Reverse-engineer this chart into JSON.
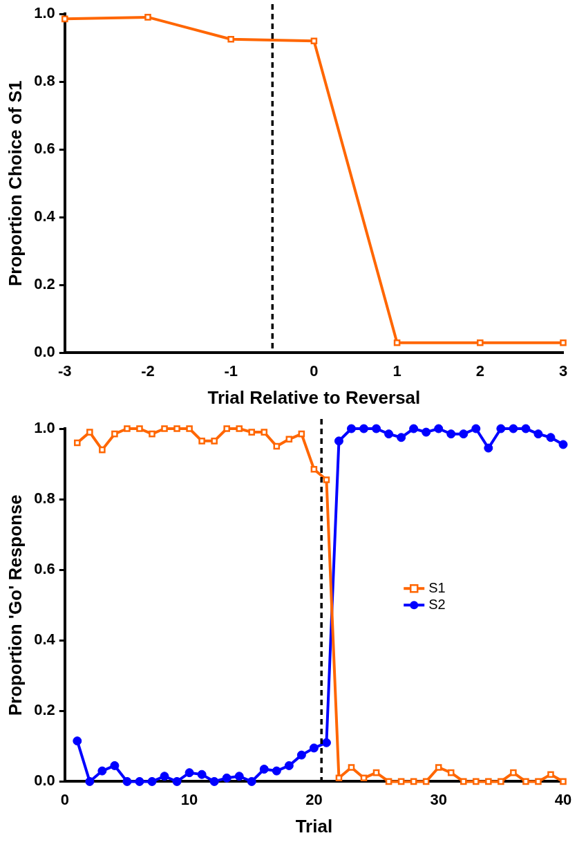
{
  "chart_data": [
    {
      "type": "line",
      "xlabel": "Trial Relative to Reversal",
      "ylabel": "Proportion Choice of S1",
      "x": [
        -3,
        -2,
        -1,
        0,
        1,
        2,
        3
      ],
      "series": [
        {
          "color": "#ff6600",
          "marker": "square",
          "values": [
            0.985,
            0.99,
            0.925,
            0.92,
            0.03,
            0.03,
            0.03
          ]
        }
      ],
      "xlim": [
        -3,
        3
      ],
      "xticks": [
        -3,
        -2,
        -1,
        0,
        1,
        2,
        3
      ],
      "ylim": [
        0,
        1
      ],
      "yticks": [
        {
          "value": 0,
          "label": "0.0"
        },
        {
          "value": 0.2,
          "label": "0.2"
        },
        {
          "value": 0.4,
          "label": "0.4"
        },
        {
          "value": 0.6,
          "label": "0.6"
        },
        {
          "value": 0.8,
          "label": "0.8"
        },
        {
          "value": 1,
          "label": "1.0"
        }
      ],
      "ref_lines": [
        {
          "axis": "x",
          "value": -0.5,
          "line_style": "dashed",
          "color": "#000000"
        }
      ],
      "grid": false,
      "legend": false
    },
    {
      "type": "line",
      "xlabel": "Trial",
      "ylabel": "Proportion 'Go' Response",
      "x": [
        1,
        2,
        3,
        4,
        5,
        6,
        7,
        8,
        9,
        10,
        11,
        12,
        13,
        14,
        15,
        16,
        17,
        18,
        19,
        20,
        21,
        22,
        23,
        24,
        25,
        26,
        27,
        28,
        29,
        30,
        31,
        32,
        33,
        34,
        35,
        36,
        37,
        38,
        39,
        40
      ],
      "series": [
        {
          "name": "S1",
          "color": "#ff6600",
          "marker": "square",
          "values": [
            0.96,
            0.99,
            0.94,
            0.985,
            1,
            1,
            0.985,
            1,
            1,
            1,
            0.965,
            0.965,
            1,
            1,
            0.99,
            0.99,
            0.95,
            0.97,
            0.985,
            0.885,
            0.855,
            0.01,
            0.04,
            0.01,
            0.025,
            0,
            0,
            0,
            0,
            0.04,
            0.025,
            0,
            0,
            0,
            0,
            0.025,
            0,
            0,
            0.02,
            0
          ]
        },
        {
          "name": "S2",
          "color": "#0000ff",
          "marker": "circle",
          "values": [
            0.115,
            0,
            0.03,
            0.045,
            0,
            0,
            0,
            0.015,
            0,
            0.025,
            0.02,
            0,
            0.01,
            0.015,
            0,
            0.035,
            0.03,
            0.045,
            0.075,
            0.095,
            0.11,
            0.965,
            1,
            1,
            1,
            0.985,
            0.975,
            1,
            0.99,
            1,
            0.985,
            0.985,
            1,
            0.945,
            1,
            1,
            1,
            0.985,
            0.975,
            0.955
          ]
        }
      ],
      "xlim": [
        0,
        40
      ],
      "xticks": [
        0,
        10,
        20,
        30,
        40
      ],
      "ylim": [
        0,
        1
      ],
      "yticks": [
        {
          "value": 0,
          "label": "0.0"
        },
        {
          "value": 0.2,
          "label": "0.2"
        },
        {
          "value": 0.4,
          "label": "0.4"
        },
        {
          "value": 0.6,
          "label": "0.6"
        },
        {
          "value": 0.8,
          "label": "0.8"
        },
        {
          "value": 1,
          "label": "1.0"
        }
      ],
      "ref_lines": [
        {
          "axis": "x",
          "value": 20.6,
          "line_style": "dashed",
          "color": "#000000"
        }
      ],
      "grid": false,
      "legend": "right"
    }
  ]
}
